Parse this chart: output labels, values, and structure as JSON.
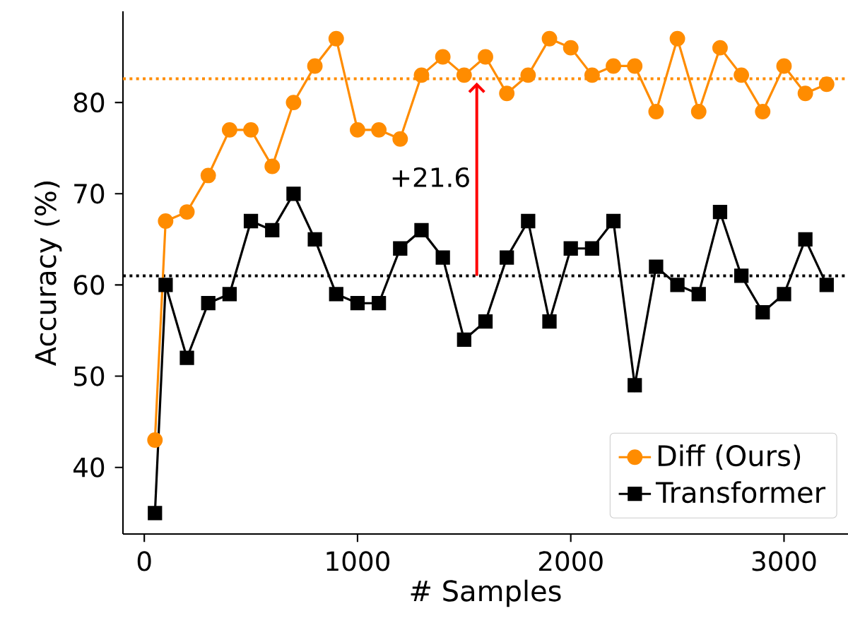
{
  "chart_data": {
    "type": "line",
    "xlabel": "# Samples",
    "ylabel": "Accuracy (%)",
    "x": [
      50,
      100,
      200,
      300,
      400,
      500,
      600,
      700,
      800,
      900,
      1000,
      1100,
      1200,
      1300,
      1400,
      1500,
      1600,
      1700,
      1800,
      1900,
      2000,
      2100,
      2200,
      2300,
      2400,
      2500,
      2600,
      2700,
      2800,
      2900,
      3000,
      3100,
      3200
    ],
    "series": [
      {
        "name": "Diff (Ours)",
        "color": "#ff8c00",
        "marker": "circle",
        "values": [
          43,
          67,
          68,
          72,
          77,
          77,
          73,
          80,
          84,
          87,
          77,
          77,
          76,
          83,
          85,
          83,
          85,
          81,
          83,
          87,
          86,
          83,
          84,
          84,
          79,
          87,
          79,
          86,
          83,
          79,
          84,
          81,
          82
        ]
      },
      {
        "name": "Transformer",
        "color": "#000000",
        "marker": "square",
        "values": [
          35,
          60,
          52,
          58,
          59,
          67,
          66,
          70,
          65,
          59,
          58,
          58,
          64,
          66,
          63,
          54,
          56,
          63,
          67,
          56,
          64,
          64,
          67,
          49,
          62,
          60,
          59,
          68,
          61,
          57,
          59,
          65,
          60
        ]
      }
    ],
    "xlim": [
      -100,
      3300
    ],
    "ylim": [
      32.7,
      90
    ],
    "xticks": [
      0,
      1000,
      2000,
      3000
    ],
    "yticks": [
      40,
      50,
      60,
      70,
      80
    ],
    "ref_lines": [
      {
        "axis": "y",
        "value": 82.6,
        "color": "#ff8c00",
        "line_style": "dotted"
      },
      {
        "axis": "y",
        "value": 61,
        "color": "#000000",
        "line_style": "dotted"
      }
    ],
    "annotations": [
      "+21.6"
    ],
    "legend": "bottom right",
    "grid": false
  }
}
